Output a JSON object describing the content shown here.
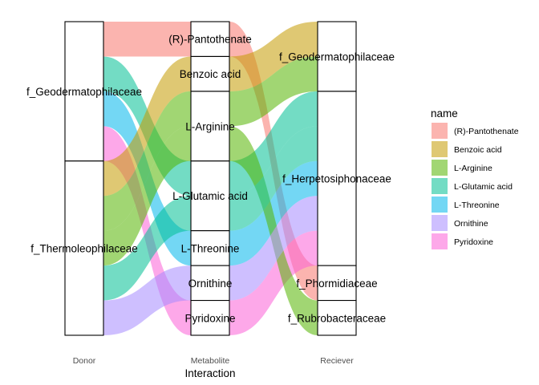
{
  "chart_data": {
    "type": "alluvial",
    "xlabel": "Interaction",
    "axes": [
      "Donor",
      "Metabolite",
      "Reciever"
    ],
    "legend": {
      "title": "name",
      "position": "right",
      "entries": [
        "(R)-Pantothenate",
        "Benzoic acid",
        "L-Arginine",
        "L-Glutamic acid",
        "L-Threonine",
        "Ornithine",
        "Pyridoxine"
      ]
    },
    "colors": {
      "(R)-Pantothenate": "#F8766D",
      "Benzoic acid": "#C49A00",
      "L-Arginine": "#53B400",
      "L-Glutamic acid": "#00C094",
      "L-Threonine": "#00B6EB",
      "Ornithine": "#A58AFF",
      "Pyridoxine": "#FB61D7"
    },
    "strata": {
      "Donor": [
        "f_Geodermatophilaceae",
        "f_Thermoleophilaceae"
      ],
      "Metabolite": [
        "(R)-Pantothenate",
        "Benzoic acid",
        "L-Arginine",
        "L-Glutamic acid",
        "L-Threonine",
        "Ornithine",
        "Pyridoxine"
      ],
      "Reciever": [
        "f_Geodermatophilaceae",
        "f_Herpetosiphonaceae",
        "f_Phormidiaceae",
        "f_Rubrobacteraceae"
      ]
    },
    "flows": [
      {
        "donor": "f_Geodermatophilaceae",
        "metabolite": "(R)-Pantothenate",
        "reciever": "f_Phormidiaceae",
        "value": 1
      },
      {
        "donor": "f_Geodermatophilaceae",
        "metabolite": "L-Glutamic acid",
        "reciever": "f_Herpetosiphonaceae",
        "value": 1
      },
      {
        "donor": "f_Geodermatophilaceae",
        "metabolite": "L-Threonine",
        "reciever": "f_Herpetosiphonaceae",
        "value": 1
      },
      {
        "donor": "f_Geodermatophilaceae",
        "metabolite": "Pyridoxine",
        "reciever": "f_Herpetosiphonaceae",
        "value": 1
      },
      {
        "donor": "f_Thermoleophilaceae",
        "metabolite": "Benzoic acid",
        "reciever": "f_Geodermatophilaceae",
        "value": 1
      },
      {
        "donor": "f_Thermoleophilaceae",
        "metabolite": "L-Arginine",
        "reciever": "f_Geodermatophilaceae",
        "value": 1
      },
      {
        "donor": "f_Thermoleophilaceae",
        "metabolite": "L-Arginine",
        "reciever": "f_Rubrobacteraceae",
        "value": 1
      },
      {
        "donor": "f_Thermoleophilaceae",
        "metabolite": "L-Glutamic acid",
        "reciever": "f_Herpetosiphonaceae",
        "value": 1
      },
      {
        "donor": "f_Thermoleophilaceae",
        "metabolite": "Ornithine",
        "reciever": "f_Herpetosiphonaceae",
        "value": 1
      }
    ]
  }
}
